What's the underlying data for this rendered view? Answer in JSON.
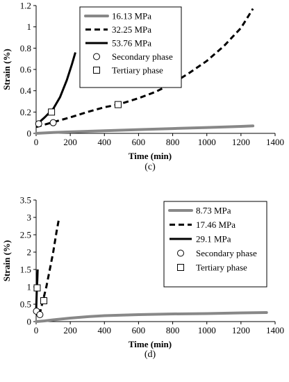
{
  "chart_data": [
    {
      "type": "line",
      "caption": "(c)",
      "xlabel": "Time (min)",
      "ylabel": "Strain (%)",
      "xlim": [
        0,
        1400
      ],
      "ylim": [
        0,
        1.2
      ],
      "xticks": [
        "0",
        "200",
        "400",
        "600",
        "800",
        "1000",
        "1200",
        "1400"
      ],
      "yticks": [
        "0",
        "0.2",
        "0.4",
        "0.6",
        "0.8",
        "1",
        "1.2"
      ],
      "legend_position": "top-right",
      "series": [
        {
          "name": "16.13 MPa",
          "color": "#888888",
          "style": "solid-thick",
          "x": [
            0,
            100,
            200,
            400,
            600,
            800,
            1000,
            1200,
            1270
          ],
          "y": [
            0,
            0.008,
            0.014,
            0.025,
            0.035,
            0.045,
            0.055,
            0.065,
            0.07
          ]
        },
        {
          "name": "32.25 MPa",
          "color": "#000000",
          "style": "dashed",
          "x": [
            0,
            100,
            200,
            300,
            400,
            480,
            600,
            700,
            800,
            900,
            1000,
            1100,
            1200,
            1270
          ],
          "y": [
            0.06,
            0.105,
            0.15,
            0.2,
            0.245,
            0.27,
            0.33,
            0.39,
            0.47,
            0.57,
            0.68,
            0.82,
            0.99,
            1.17
          ]
        },
        {
          "name": "53.76 MPa",
          "color": "#000000",
          "style": "solid",
          "x": [
            0,
            15,
            50,
            100,
            140,
            180,
            210,
            230
          ],
          "y": [
            0.09,
            0.1,
            0.15,
            0.23,
            0.34,
            0.5,
            0.65,
            0.76
          ]
        }
      ],
      "markers": [
        {
          "name": "Secondary phase",
          "shape": "circle",
          "points": [
            [
              15,
              0.09
            ],
            [
              100,
              0.1
            ]
          ]
        },
        {
          "name": "Tertiary phase",
          "shape": "square",
          "points": [
            [
              90,
              0.2
            ],
            [
              480,
              0.27
            ]
          ]
        }
      ]
    },
    {
      "type": "line",
      "caption": "(d)",
      "xlabel": "Time (min)",
      "ylabel": "Strain (%)",
      "xlim": [
        0,
        1400
      ],
      "ylim": [
        0,
        3.5
      ],
      "xticks": [
        "0",
        "200",
        "400",
        "600",
        "800",
        "1000",
        "1200",
        "1400"
      ],
      "yticks": [
        "0",
        "0.5",
        "1",
        "1.5",
        "2",
        "2.5",
        "3",
        "3.5"
      ],
      "legend_position": "top-right",
      "series": [
        {
          "name": "8.73 MPa",
          "color": "#888888",
          "style": "solid-thick",
          "x": [
            0,
            50,
            100,
            200,
            300,
            400,
            600,
            800,
            1000,
            1200,
            1350
          ],
          "y": [
            0,
            0.02,
            0.05,
            0.1,
            0.14,
            0.17,
            0.2,
            0.22,
            0.23,
            0.25,
            0.26
          ]
        },
        {
          "name": "17.46 MPa",
          "color": "#000000",
          "style": "dashed",
          "x": [
            20,
            40,
            60,
            80,
            100,
            120,
            135
          ],
          "y": [
            0.2,
            0.6,
            1.0,
            1.5,
            2.0,
            2.6,
            3.0
          ]
        },
        {
          "name": "29.1 MPa",
          "color": "#000000",
          "style": "solid",
          "x": [
            0,
            2,
            4,
            7,
            9
          ],
          "y": [
            0.3,
            0.6,
            0.95,
            1.2,
            1.5
          ]
        }
      ],
      "markers": [
        {
          "name": "Secondary phase",
          "shape": "circle",
          "points": [
            [
              2,
              0.3
            ],
            [
              22,
              0.2
            ]
          ]
        },
        {
          "name": "Tertiary phase",
          "shape": "square",
          "points": [
            [
              6,
              0.97
            ],
            [
              45,
              0.6
            ]
          ]
        }
      ]
    }
  ]
}
